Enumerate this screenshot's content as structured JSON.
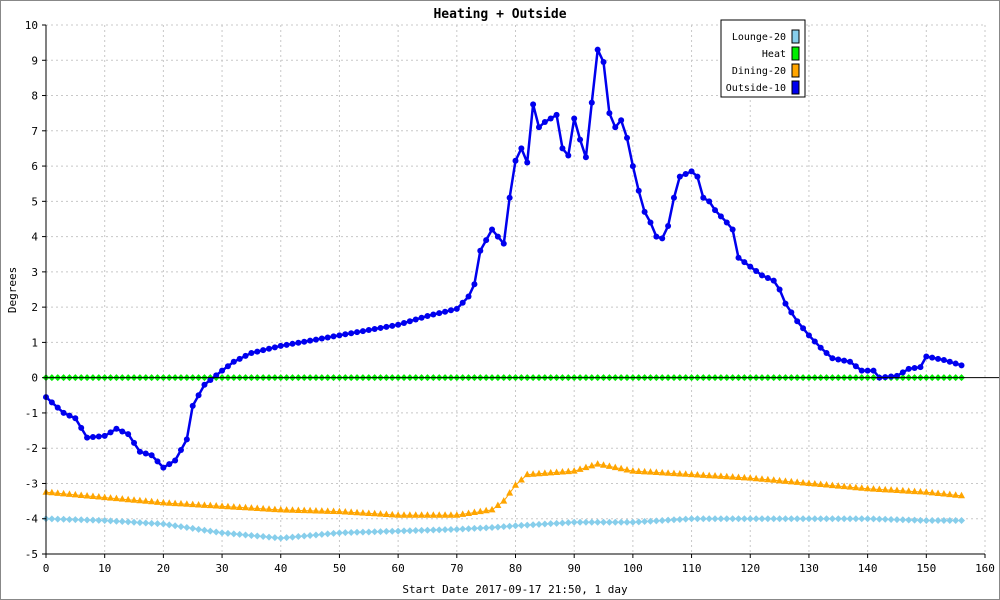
{
  "chart_data": {
    "type": "line",
    "title": "Heating + Outside",
    "xlabel": "Start Date 2017-09-17 21:50, 1 day",
    "ylabel": "Degrees",
    "xlim": [
      0,
      160
    ],
    "ylim": [
      -5,
      10
    ],
    "x_ticks": [
      0,
      10,
      20,
      30,
      40,
      50,
      60,
      70,
      80,
      90,
      100,
      110,
      120,
      130,
      140,
      150,
      160
    ],
    "y_ticks": [
      -5,
      -4,
      -3,
      -2,
      -1,
      0,
      1,
      2,
      3,
      4,
      5,
      6,
      7,
      8,
      9,
      10
    ],
    "grid": true,
    "legend_position": "top-right",
    "series": [
      {
        "name": "Lounge-20",
        "color": "#87ceeb",
        "marker": "diamond",
        "anchors": [
          [
            0,
            -4.0
          ],
          [
            10,
            -4.05
          ],
          [
            20,
            -4.15
          ],
          [
            30,
            -4.4
          ],
          [
            40,
            -4.55
          ],
          [
            50,
            -4.4
          ],
          [
            60,
            -4.35
          ],
          [
            70,
            -4.3
          ],
          [
            76,
            -4.25
          ],
          [
            80,
            -4.2
          ],
          [
            90,
            -4.1
          ],
          [
            100,
            -4.1
          ],
          [
            110,
            -4.0
          ],
          [
            120,
            -4.0
          ],
          [
            130,
            -4.0
          ],
          [
            140,
            -4.0
          ],
          [
            150,
            -4.05
          ],
          [
            156,
            -4.05
          ]
        ]
      },
      {
        "name": "Heat",
        "color": "#00ee00",
        "marker": "diamond",
        "anchors": [
          [
            0,
            0
          ],
          [
            156,
            0
          ]
        ]
      },
      {
        "name": "Dining-20",
        "color": "#ffa500",
        "marker": "triangle",
        "anchors": [
          [
            0,
            -3.25
          ],
          [
            10,
            -3.4
          ],
          [
            20,
            -3.55
          ],
          [
            30,
            -3.65
          ],
          [
            40,
            -3.75
          ],
          [
            50,
            -3.8
          ],
          [
            60,
            -3.9
          ],
          [
            70,
            -3.9
          ],
          [
            76,
            -3.75
          ],
          [
            78,
            -3.5
          ],
          [
            80,
            -3.05
          ],
          [
            82,
            -2.75
          ],
          [
            90,
            -2.65
          ],
          [
            94,
            -2.45
          ],
          [
            100,
            -2.65
          ],
          [
            110,
            -2.75
          ],
          [
            120,
            -2.85
          ],
          [
            130,
            -3.0
          ],
          [
            140,
            -3.15
          ],
          [
            150,
            -3.25
          ],
          [
            156,
            -3.35
          ]
        ]
      },
      {
        "name": "Outside-10",
        "color": "#0000ee",
        "marker": "circle",
        "anchors": [
          [
            0,
            -0.55
          ],
          [
            3,
            -1.0
          ],
          [
            5,
            -1.15
          ],
          [
            7,
            -1.7
          ],
          [
            10,
            -1.65
          ],
          [
            12,
            -1.45
          ],
          [
            14,
            -1.6
          ],
          [
            16,
            -2.1
          ],
          [
            18,
            -2.2
          ],
          [
            20,
            -2.55
          ],
          [
            22,
            -2.35
          ],
          [
            24,
            -1.75
          ],
          [
            25,
            -0.8
          ],
          [
            27,
            -0.2
          ],
          [
            30,
            0.2
          ],
          [
            32,
            0.45
          ],
          [
            35,
            0.7
          ],
          [
            40,
            0.9
          ],
          [
            45,
            1.05
          ],
          [
            50,
            1.2
          ],
          [
            55,
            1.35
          ],
          [
            60,
            1.5
          ],
          [
            65,
            1.75
          ],
          [
            70,
            1.95
          ],
          [
            72,
            2.3
          ],
          [
            73,
            2.65
          ],
          [
            74,
            3.6
          ],
          [
            76,
            4.2
          ],
          [
            78,
            3.8
          ],
          [
            79,
            5.1
          ],
          [
            80,
            6.15
          ],
          [
            81,
            6.5
          ],
          [
            82,
            6.1
          ],
          [
            83,
            7.75
          ],
          [
            84,
            7.1
          ],
          [
            85,
            7.25
          ],
          [
            87,
            7.45
          ],
          [
            88,
            6.5
          ],
          [
            89,
            6.3
          ],
          [
            90,
            7.35
          ],
          [
            91,
            6.75
          ],
          [
            92,
            6.25
          ],
          [
            93,
            7.8
          ],
          [
            94,
            9.3
          ],
          [
            95,
            8.95
          ],
          [
            96,
            7.5
          ],
          [
            97,
            7.1
          ],
          [
            98,
            7.3
          ],
          [
            99,
            6.8
          ],
          [
            100,
            6.0
          ],
          [
            101,
            5.3
          ],
          [
            102,
            4.7
          ],
          [
            103,
            4.4
          ],
          [
            104,
            4.0
          ],
          [
            105,
            3.95
          ],
          [
            106,
            4.3
          ],
          [
            107,
            5.1
          ],
          [
            108,
            5.7
          ],
          [
            110,
            5.85
          ],
          [
            111,
            5.7
          ],
          [
            112,
            5.1
          ],
          [
            113,
            5.0
          ],
          [
            114,
            4.75
          ],
          [
            116,
            4.4
          ],
          [
            117,
            4.2
          ],
          [
            118,
            3.4
          ],
          [
            120,
            3.15
          ],
          [
            122,
            2.9
          ],
          [
            124,
            2.75
          ],
          [
            125,
            2.5
          ],
          [
            126,
            2.1
          ],
          [
            128,
            1.6
          ],
          [
            130,
            1.2
          ],
          [
            132,
            0.85
          ],
          [
            134,
            0.55
          ],
          [
            137,
            0.45
          ],
          [
            139,
            0.2
          ],
          [
            141,
            0.2
          ],
          [
            142,
            0.0
          ],
          [
            145,
            0.05
          ],
          [
            147,
            0.25
          ],
          [
            149,
            0.3
          ],
          [
            150,
            0.6
          ],
          [
            153,
            0.5
          ],
          [
            156,
            0.35
          ]
        ]
      }
    ]
  }
}
